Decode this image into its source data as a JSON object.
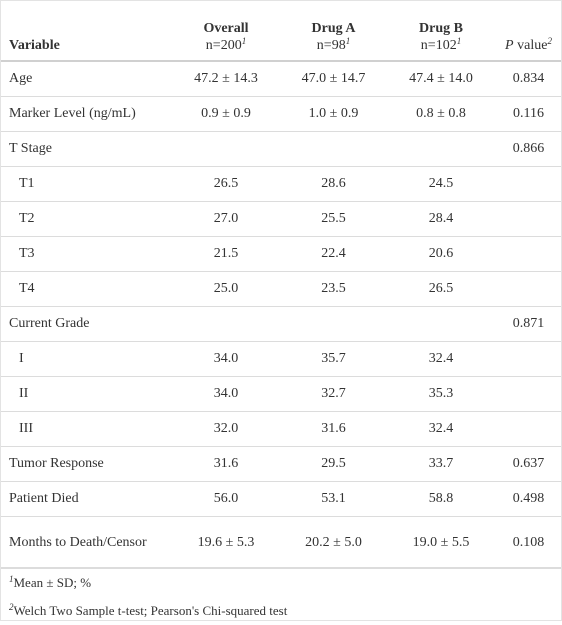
{
  "table": {
    "header": [
      {
        "label": "Variable"
      },
      {
        "label": "Overall",
        "n": "n=200",
        "note": "1"
      },
      {
        "label": "Drug A",
        "n": "n=98",
        "note": "1"
      },
      {
        "label": "Drug B",
        "n": "n=102",
        "note": "1"
      },
      {
        "label_italic": "P",
        "label": " value",
        "note": "2"
      }
    ],
    "rows": [
      {
        "label": "Age",
        "cells": [
          "47.2 ± 14.3",
          "47.0 ± 14.7",
          "47.4 ± 14.0",
          "0.834"
        ]
      },
      {
        "label": "Marker Level (ng/mL)",
        "cells": [
          "0.9 ± 0.9",
          "1.0 ± 0.9",
          "0.8 ± 0.8",
          "0.116"
        ]
      },
      {
        "label": "T Stage",
        "cells": [
          null,
          null,
          null,
          "0.866"
        ]
      },
      {
        "label": "T1",
        "indent": true,
        "cells": [
          "26.5",
          "28.6",
          "24.5",
          null
        ]
      },
      {
        "label": "T2",
        "indent": true,
        "cells": [
          "27.0",
          "25.5",
          "28.4",
          null
        ]
      },
      {
        "label": "T3",
        "indent": true,
        "cells": [
          "21.5",
          "22.4",
          "20.6",
          null
        ]
      },
      {
        "label": "T4",
        "indent": true,
        "cells": [
          "25.0",
          "23.5",
          "26.5",
          null
        ]
      },
      {
        "label": "Current Grade",
        "cells": [
          null,
          null,
          null,
          "0.871"
        ]
      },
      {
        "label": "I",
        "indent": true,
        "cells": [
          "34.0",
          "35.7",
          "32.4",
          null
        ]
      },
      {
        "label": "II",
        "indent": true,
        "cells": [
          "34.0",
          "32.7",
          "35.3",
          null
        ]
      },
      {
        "label": "III",
        "indent": true,
        "cells": [
          "32.0",
          "31.6",
          "32.4",
          null
        ]
      },
      {
        "label": "Tumor Response",
        "cells": [
          "31.6",
          "29.5",
          "33.7",
          "0.637"
        ]
      },
      {
        "label": "Patient Died",
        "cells": [
          "56.0",
          "53.1",
          "58.8",
          "0.498"
        ]
      },
      {
        "label": "Months to Death/Censor",
        "cells": [
          "19.6 ± 5.3",
          "20.2 ± 5.0",
          "19.0 ± 5.5",
          "0.108"
        ]
      }
    ],
    "footnotes": [
      {
        "mark": "1",
        "text": "Mean ± SD; %"
      },
      {
        "mark": "2",
        "text": "Welch Two Sample t-test; Pearson's Chi-squared test"
      }
    ]
  }
}
